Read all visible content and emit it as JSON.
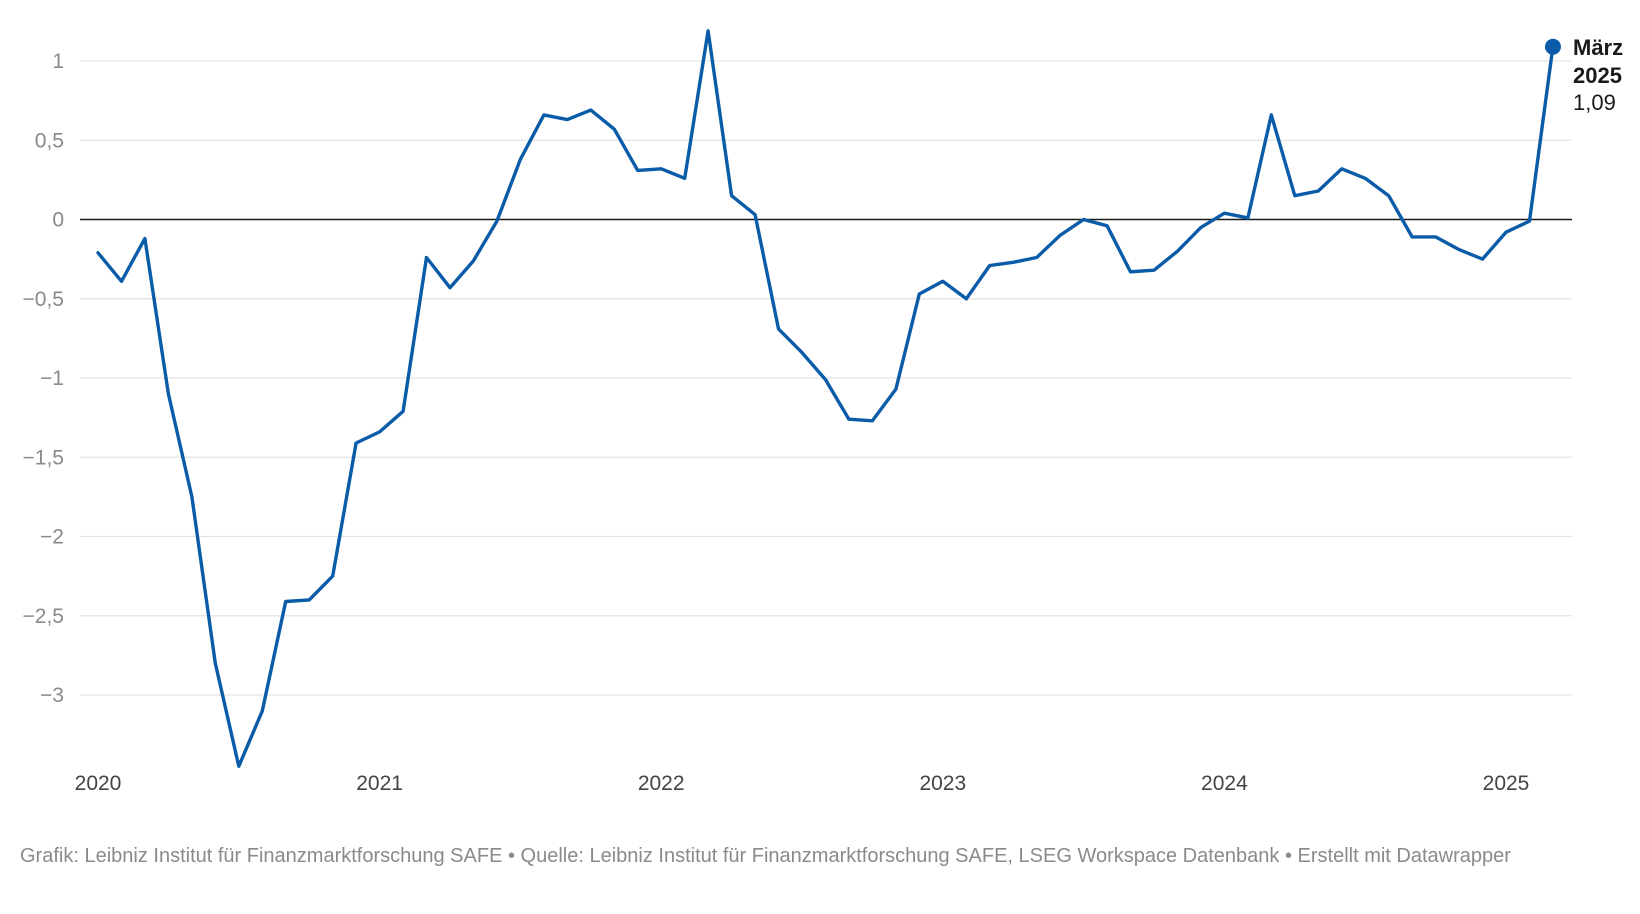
{
  "chart_data": {
    "type": "line",
    "title": "",
    "xlabel": "",
    "ylabel": "",
    "ylim": [
      -3.45,
      1.2
    ],
    "yticks": [
      1,
      0.5,
      0,
      -0.5,
      -1,
      -1.5,
      -2,
      -2.5,
      -3
    ],
    "ytick_labels": [
      "1",
      "0,5",
      "0",
      "−0,5",
      "−1",
      "−1,5",
      "−2",
      "−2,5",
      "−3"
    ],
    "xticks": [
      2020,
      2021,
      2022,
      2023,
      2024,
      2025
    ],
    "xtick_labels": [
      "2020",
      "2021",
      "2022",
      "2023",
      "2024",
      "2025"
    ],
    "grid": true,
    "series": [
      {
        "color": "#0a5ba8",
        "x": [
          "2020-01",
          "2020-02",
          "2020-03",
          "2020-04",
          "2020-05",
          "2020-06",
          "2020-07",
          "2020-08",
          "2020-09",
          "2020-10",
          "2020-11",
          "2020-12",
          "2021-01",
          "2021-02",
          "2021-03",
          "2021-04",
          "2021-05",
          "2021-06",
          "2021-07",
          "2021-08",
          "2021-09",
          "2021-10",
          "2021-11",
          "2021-12",
          "2022-01",
          "2022-02",
          "2022-03",
          "2022-04",
          "2022-05",
          "2022-06",
          "2022-07",
          "2022-08",
          "2022-09",
          "2022-10",
          "2022-11",
          "2022-12",
          "2023-01",
          "2023-02",
          "2023-03",
          "2023-04",
          "2023-05",
          "2023-06",
          "2023-07",
          "2023-08",
          "2023-09",
          "2023-10",
          "2023-11",
          "2023-12",
          "2024-01",
          "2024-02",
          "2024-03",
          "2024-04",
          "2024-05",
          "2024-06",
          "2024-07",
          "2024-08",
          "2024-09",
          "2024-10",
          "2024-11",
          "2024-12",
          "2025-01",
          "2025-02",
          "2025-03"
        ],
        "y": [
          -0.21,
          -0.39,
          -0.12,
          -1.1,
          -1.75,
          -2.8,
          -3.45,
          -3.1,
          -2.41,
          -2.4,
          -2.25,
          -1.41,
          -1.34,
          -1.21,
          -0.24,
          -0.43,
          -0.26,
          -0.01,
          0.38,
          0.66,
          0.63,
          0.69,
          0.57,
          0.31,
          0.32,
          0.26,
          1.19,
          0.15,
          0.03,
          -0.69,
          -0.84,
          -1.01,
          -1.26,
          -1.27,
          -1.07,
          -0.47,
          -0.39,
          -0.5,
          -0.29,
          -0.27,
          -0.24,
          -0.1,
          0.0,
          -0.04,
          -0.33,
          -0.32,
          -0.2,
          -0.05,
          0.04,
          0.01,
          0.66,
          0.15,
          0.18,
          0.32,
          0.26,
          0.15,
          -0.11,
          -0.11,
          -0.19,
          -0.25,
          -0.08,
          -0.01,
          1.09
        ]
      }
    ],
    "annotation": {
      "month": "März",
      "year": "2025",
      "value_label": "1,09"
    }
  },
  "footer": {
    "text": "Grafik: Leibniz Institut für Finanzmarktforschung SAFE • Quelle: Leibniz Institut für Finanzmarktforschung SAFE, LSEG Workspace Datenbank • Erstellt mit Datawrapper"
  }
}
